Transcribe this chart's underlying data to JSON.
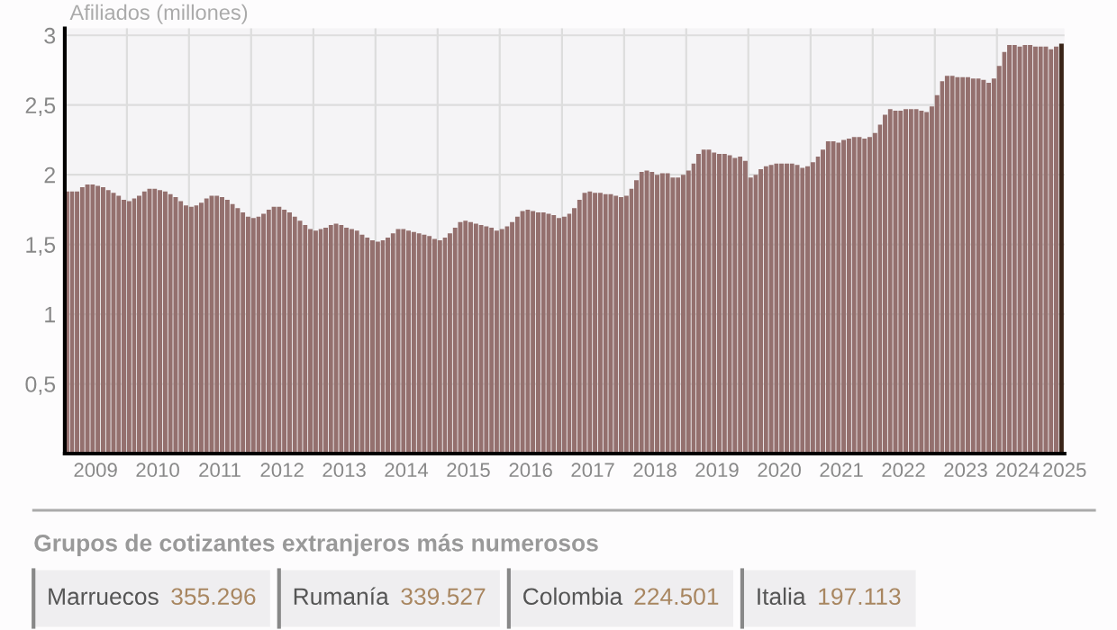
{
  "chart_data": {
    "type": "bar",
    "ylabel": "Afiliados (millones)",
    "x": [
      "2009-01",
      "2009-02",
      "2009-03",
      "2009-04",
      "2009-05",
      "2009-06",
      "2009-07",
      "2009-08",
      "2009-09",
      "2009-10",
      "2009-11",
      "2009-12",
      "2010-01",
      "2010-02",
      "2010-03",
      "2010-04",
      "2010-05",
      "2010-06",
      "2010-07",
      "2010-08",
      "2010-09",
      "2010-10",
      "2010-11",
      "2010-12",
      "2011-01",
      "2011-02",
      "2011-03",
      "2011-04",
      "2011-05",
      "2011-06",
      "2011-07",
      "2011-08",
      "2011-09",
      "2011-10",
      "2011-11",
      "2011-12",
      "2012-01",
      "2012-02",
      "2012-03",
      "2012-04",
      "2012-05",
      "2012-06",
      "2012-07",
      "2012-08",
      "2012-09",
      "2012-10",
      "2012-11",
      "2012-12",
      "2013-01",
      "2013-02",
      "2013-03",
      "2013-04",
      "2013-05",
      "2013-06",
      "2013-07",
      "2013-08",
      "2013-09",
      "2013-10",
      "2013-11",
      "2013-12",
      "2014-01",
      "2014-02",
      "2014-03",
      "2014-04",
      "2014-05",
      "2014-06",
      "2014-07",
      "2014-08",
      "2014-09",
      "2014-10",
      "2014-11",
      "2014-12",
      "2015-01",
      "2015-02",
      "2015-03",
      "2015-04",
      "2015-05",
      "2015-06",
      "2015-07",
      "2015-08",
      "2015-09",
      "2015-10",
      "2015-11",
      "2015-12",
      "2016-01",
      "2016-02",
      "2016-03",
      "2016-04",
      "2016-05",
      "2016-06",
      "2016-07",
      "2016-08",
      "2016-09",
      "2016-10",
      "2016-11",
      "2016-12",
      "2017-01",
      "2017-02",
      "2017-03",
      "2017-04",
      "2017-05",
      "2017-06",
      "2017-07",
      "2017-08",
      "2017-09",
      "2017-10",
      "2017-11",
      "2017-12",
      "2018-01",
      "2018-02",
      "2018-03",
      "2018-04",
      "2018-05",
      "2018-06",
      "2018-07",
      "2018-08",
      "2018-09",
      "2018-10",
      "2018-11",
      "2018-12",
      "2019-01",
      "2019-02",
      "2019-03",
      "2019-04",
      "2019-05",
      "2019-06",
      "2019-07",
      "2019-08",
      "2019-09",
      "2019-10",
      "2019-11",
      "2019-12",
      "2020-01",
      "2020-02",
      "2020-03",
      "2020-04",
      "2020-05",
      "2020-06",
      "2020-07",
      "2020-08",
      "2020-09",
      "2020-10",
      "2020-11",
      "2020-12",
      "2021-01",
      "2021-02",
      "2021-03",
      "2021-04",
      "2021-05",
      "2021-06",
      "2021-07",
      "2021-08",
      "2021-09",
      "2021-10",
      "2021-11",
      "2021-12",
      "2022-01",
      "2022-02",
      "2022-03",
      "2022-04",
      "2022-05",
      "2022-06",
      "2022-07",
      "2022-08",
      "2022-09",
      "2022-10",
      "2022-11",
      "2022-12",
      "2023-01",
      "2023-02",
      "2023-03",
      "2023-04",
      "2023-05",
      "2023-06",
      "2023-07",
      "2023-08",
      "2023-09",
      "2023-10",
      "2023-11",
      "2023-12",
      "2024-01",
      "2024-02",
      "2024-03",
      "2024-04",
      "2024-05",
      "2024-06",
      "2024-07",
      "2024-08",
      "2024-09",
      "2024-10",
      "2024-11",
      "2024-12",
      "2025-01"
    ],
    "values": [
      1.88,
      1.88,
      1.88,
      1.91,
      1.93,
      1.93,
      1.92,
      1.91,
      1.89,
      1.87,
      1.85,
      1.82,
      1.81,
      1.83,
      1.85,
      1.88,
      1.9,
      1.9,
      1.89,
      1.88,
      1.86,
      1.84,
      1.81,
      1.78,
      1.77,
      1.78,
      1.8,
      1.83,
      1.85,
      1.85,
      1.84,
      1.82,
      1.79,
      1.76,
      1.73,
      1.7,
      1.69,
      1.7,
      1.72,
      1.75,
      1.77,
      1.77,
      1.75,
      1.73,
      1.7,
      1.67,
      1.64,
      1.61,
      1.6,
      1.61,
      1.62,
      1.64,
      1.65,
      1.64,
      1.62,
      1.61,
      1.6,
      1.57,
      1.55,
      1.53,
      1.52,
      1.53,
      1.55,
      1.58,
      1.61,
      1.61,
      1.6,
      1.59,
      1.58,
      1.57,
      1.56,
      1.54,
      1.53,
      1.55,
      1.58,
      1.62,
      1.66,
      1.67,
      1.66,
      1.65,
      1.64,
      1.63,
      1.62,
      1.6,
      1.61,
      1.63,
      1.66,
      1.7,
      1.74,
      1.75,
      1.74,
      1.73,
      1.73,
      1.72,
      1.71,
      1.69,
      1.7,
      1.72,
      1.76,
      1.82,
      1.87,
      1.88,
      1.87,
      1.87,
      1.86,
      1.86,
      1.85,
      1.84,
      1.85,
      1.9,
      1.96,
      2.02,
      2.03,
      2.02,
      2.0,
      2.01,
      2.01,
      1.98,
      1.98,
      2.0,
      2.03,
      2.08,
      2.15,
      2.18,
      2.18,
      2.16,
      2.15,
      2.15,
      2.14,
      2.12,
      2.13,
      2.1,
      1.98,
      2.0,
      2.04,
      2.06,
      2.07,
      2.08,
      2.08,
      2.08,
      2.08,
      2.07,
      2.05,
      2.06,
      2.09,
      2.13,
      2.18,
      2.24,
      2.24,
      2.23,
      2.25,
      2.26,
      2.27,
      2.27,
      2.26,
      2.27,
      2.3,
      2.36,
      2.43,
      2.47,
      2.46,
      2.46,
      2.47,
      2.47,
      2.47,
      2.46,
      2.45,
      2.49,
      2.57,
      2.67,
      2.71,
      2.71,
      2.7,
      2.7,
      2.7,
      2.69,
      2.69,
      2.68,
      2.66,
      2.69,
      2.78,
      2.88,
      2.93,
      2.93,
      2.92,
      2.93,
      2.93,
      2.92,
      2.92,
      2.92,
      2.9,
      2.92,
      2.94
    ],
    "colors": [
      "#94706e",
      "#94706e",
      "#94706e",
      "#94706e",
      "#94706e",
      "#94706e",
      "#94706e",
      "#94706e",
      "#94706e",
      "#94706e",
      "#94706e",
      "#94706e",
      "#94706e",
      "#94706e",
      "#94706e",
      "#94706e",
      "#94706e",
      "#94706e",
      "#94706e",
      "#94706e",
      "#94706e",
      "#94706e",
      "#94706e",
      "#94706e",
      "#94706e",
      "#94706e",
      "#94706e",
      "#94706e",
      "#94706e",
      "#94706e",
      "#94706e",
      "#94706e",
      "#94706e",
      "#94706e",
      "#94706e",
      "#94706e",
      "#94706e",
      "#94706e",
      "#94706e",
      "#94706e",
      "#94706e",
      "#94706e",
      "#94706e",
      "#94706e",
      "#94706e",
      "#94706e",
      "#94706e",
      "#94706e",
      "#94706e",
      "#94706e",
      "#94706e",
      "#94706e",
      "#94706e",
      "#94706e",
      "#94706e",
      "#94706e",
      "#94706e",
      "#94706e",
      "#94706e",
      "#94706e",
      "#94706e",
      "#94706e",
      "#94706e",
      "#94706e",
      "#94706e",
      "#94706e",
      "#94706e",
      "#94706e",
      "#94706e",
      "#94706e",
      "#94706e",
      "#94706e",
      "#94706e",
      "#94706e",
      "#94706e",
      "#94706e",
      "#94706e",
      "#94706e",
      "#94706e",
      "#94706e",
      "#94706e",
      "#94706e",
      "#94706e",
      "#94706e",
      "#94706e",
      "#94706e",
      "#94706e",
      "#94706e",
      "#94706e",
      "#94706e",
      "#94706e",
      "#94706e",
      "#94706e",
      "#94706e",
      "#94706e",
      "#94706e",
      "#94706e",
      "#94706e",
      "#94706e",
      "#94706e",
      "#94706e",
      "#94706e",
      "#94706e",
      "#94706e",
      "#94706e",
      "#94706e",
      "#94706e",
      "#94706e",
      "#94706e",
      "#94706e",
      "#94706e",
      "#94706e",
      "#94706e",
      "#94706e",
      "#94706e",
      "#94706e",
      "#94706e",
      "#94706e",
      "#94706e",
      "#94706e",
      "#94706e",
      "#94706e",
      "#94706e",
      "#94706e",
      "#94706e",
      "#94706e",
      "#94706e",
      "#94706e",
      "#94706e",
      "#94706e",
      "#94706e",
      "#94706e",
      "#94706e",
      "#94706e",
      "#94706e",
      "#94706e",
      "#94706e",
      "#94706e",
      "#94706e",
      "#94706e",
      "#94706e",
      "#94706e",
      "#94706e",
      "#94706e",
      "#94706e",
      "#94706e",
      "#94706e",
      "#94706e",
      "#94706e",
      "#94706e",
      "#94706e",
      "#94706e",
      "#94706e",
      "#94706e",
      "#94706e",
      "#94706e",
      "#94706e",
      "#94706e",
      "#94706e",
      "#94706e",
      "#94706e",
      "#94706e",
      "#94706e",
      "#94706e",
      "#94706e",
      "#94706e",
      "#94706e",
      "#94706e",
      "#94706e",
      "#94706e",
      "#94706e",
      "#94706e",
      "#94706e",
      "#94706e",
      "#94706e",
      "#94706e",
      "#94706e",
      "#94706e",
      "#94706e",
      "#94706e",
      "#94706e",
      "#94706e",
      "#94706e",
      "#94706e",
      "#94706e",
      "#94706e",
      "#94706e",
      "#94706e",
      "#94706e",
      "#94706e",
      "#94706e",
      "#94706e",
      "#3a2418"
    ],
    "xlim": [
      "2009-01-01",
      "2025-02-01"
    ],
    "xticks": [
      {
        "value": "2009-07-01",
        "label": "2009"
      },
      {
        "value": "2010-01-01",
        "label": null
      },
      {
        "value": "2010-07-01",
        "label": "2010"
      },
      {
        "value": "2011-01-01",
        "label": null
      },
      {
        "value": "2011-07-01",
        "label": "2011"
      },
      {
        "value": "2012-01-01",
        "label": null
      },
      {
        "value": "2012-07-01",
        "label": "2012"
      },
      {
        "value": "2013-01-01",
        "label": null
      },
      {
        "value": "2013-07-01",
        "label": "2013"
      },
      {
        "value": "2014-01-01",
        "label": null
      },
      {
        "value": "2014-07-01",
        "label": "2014"
      },
      {
        "value": "2015-01-01",
        "label": null
      },
      {
        "value": "2015-07-01",
        "label": "2015"
      },
      {
        "value": "2016-01-01",
        "label": null
      },
      {
        "value": "2016-07-01",
        "label": "2016"
      },
      {
        "value": "2017-01-01",
        "label": null
      },
      {
        "value": "2017-07-01",
        "label": "2017"
      },
      {
        "value": "2018-01-01",
        "label": null
      },
      {
        "value": "2018-07-01",
        "label": "2018"
      },
      {
        "value": "2019-01-01",
        "label": null
      },
      {
        "value": "2019-07-01",
        "label": "2019"
      },
      {
        "value": "2020-01-01",
        "label": null
      },
      {
        "value": "2020-07-01",
        "label": "2020"
      },
      {
        "value": "2021-01-01",
        "label": null
      },
      {
        "value": "2021-07-01",
        "label": "2021"
      },
      {
        "value": "2022-01-01",
        "label": null
      },
      {
        "value": "2022-07-01",
        "label": "2022"
      },
      {
        "value": "2023-01-01",
        "label": null
      },
      {
        "value": "2023-07-01",
        "label": "2023"
      },
      {
        "value": "2024-01-01",
        "label": null
      },
      {
        "value": "2024-05-01",
        "label": "2024"
      },
      {
        "value": "2025-02-01",
        "label": "2025"
      }
    ],
    "ylim": [
      0,
      3.05
    ],
    "yticks": [
      {
        "value": 0.5,
        "label": "0,5"
      },
      {
        "value": 1,
        "label": "1"
      },
      {
        "value": 1.5,
        "label": "1,5"
      },
      {
        "value": 2,
        "label": "2"
      },
      {
        "value": 2.5,
        "label": "2,5"
      },
      {
        "value": 3,
        "label": "3"
      }
    ],
    "grid": true,
    "annotations": [
      "Grupos de cotizantes extranjeros más numerosos",
      "Marruecos 355.296",
      "Rumanía 339.527",
      "Colombia 224.501",
      "Italia 197.113"
    ]
  }
}
